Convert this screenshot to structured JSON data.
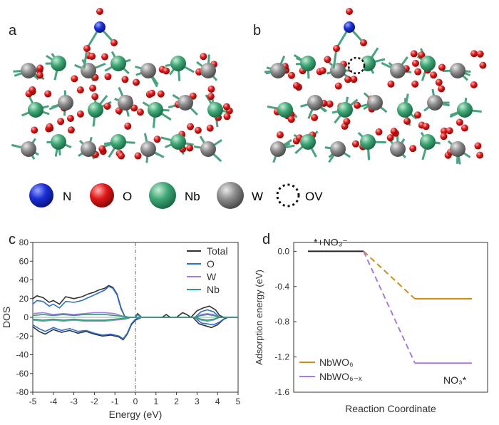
{
  "panel_labels": {
    "a": "a",
    "b": "b",
    "c": "c",
    "d": "d"
  },
  "atom_legend": [
    {
      "label": "N",
      "color": "#1a2fd6",
      "icon": "sphere"
    },
    {
      "label": "O",
      "color": "#e01818",
      "icon": "sphere"
    },
    {
      "label": "Nb",
      "color": "#3fa877",
      "icon": "sphere"
    },
    {
      "label": "W",
      "color": "#8c8c8c",
      "icon": "sphere"
    },
    {
      "label": "OV",
      "color": "#111111",
      "icon": "dashed-circle"
    }
  ],
  "colors": {
    "O": "#e01818",
    "Nb": "#3fa877",
    "W": "#8c8c8c",
    "N": "#1a2fd6",
    "bond": "#4aa37f",
    "total": "#333333",
    "dos_O": "#2b6fd1",
    "dos_W": "#a77be0",
    "dos_Nb": "#26a36b",
    "nbwo6": "#c98f1a",
    "nbwo6x": "#a77be0",
    "ref": "#222222"
  },
  "chart_data": [
    {
      "type": "line",
      "panel": "c",
      "xlabel": "Energy (eV)",
      "ylabel": "DOS",
      "xlim": [
        -5,
        5
      ],
      "ylim": [
        -80,
        80
      ],
      "xticks": [
        -5,
        -4,
        -3,
        -2,
        -1,
        0,
        1,
        2,
        3,
        4,
        5
      ],
      "yticks": [
        80,
        60,
        40,
        20,
        0,
        -20,
        -40,
        -60,
        -80
      ],
      "fermi_level": 0,
      "legend_position": "top-right",
      "series": [
        {
          "name": "Total",
          "up": [
            [
              -5,
              20
            ],
            [
              -4.8,
              23
            ],
            [
              -4.5,
              21
            ],
            [
              -4.2,
              16
            ],
            [
              -4.0,
              18
            ],
            [
              -3.7,
              14
            ],
            [
              -3.4,
              22
            ],
            [
              -3.0,
              20
            ],
            [
              -2.6,
              22
            ],
            [
              -2.3,
              25
            ],
            [
              -2.0,
              27
            ],
            [
              -1.8,
              29
            ],
            [
              -1.5,
              31
            ],
            [
              -1.3,
              34
            ],
            [
              -1.1,
              32
            ],
            [
              -0.9,
              25
            ],
            [
              -0.7,
              10
            ],
            [
              -0.5,
              0
            ],
            [
              0,
              0
            ],
            [
              0.1,
              4
            ],
            [
              0.3,
              0
            ],
            [
              1.3,
              0
            ],
            [
              1.5,
              3
            ],
            [
              1.7,
              0
            ],
            [
              2.0,
              0
            ],
            [
              2.3,
              5
            ],
            [
              2.5,
              3
            ],
            [
              2.7,
              0
            ],
            [
              3.0,
              7
            ],
            [
              3.3,
              10
            ],
            [
              3.6,
              12
            ],
            [
              3.9,
              8
            ],
            [
              4.1,
              2
            ],
            [
              4.3,
              0
            ],
            [
              5,
              0
            ]
          ],
          "down": [
            [
              -5,
              -10
            ],
            [
              -4.7,
              -15
            ],
            [
              -4.4,
              -18
            ],
            [
              -4.0,
              -13
            ],
            [
              -3.6,
              -16
            ],
            [
              -3.2,
              -14
            ],
            [
              -2.8,
              -17
            ],
            [
              -2.4,
              -15
            ],
            [
              -2.0,
              -18
            ],
            [
              -1.6,
              -20
            ],
            [
              -1.2,
              -19
            ],
            [
              -0.8,
              -21
            ],
            [
              -0.6,
              -24
            ],
            [
              -0.4,
              -18
            ],
            [
              -0.2,
              -8
            ],
            [
              0,
              -3
            ],
            [
              0.3,
              0
            ],
            [
              2.8,
              0
            ],
            [
              3.1,
              -7
            ],
            [
              3.4,
              -9
            ],
            [
              3.7,
              -11
            ],
            [
              4.0,
              -8
            ],
            [
              4.3,
              -2
            ],
            [
              4.5,
              0
            ],
            [
              5,
              0
            ]
          ]
        },
        {
          "name": "O",
          "up": [
            [
              -5,
              14
            ],
            [
              -4.8,
              18
            ],
            [
              -4.5,
              17
            ],
            [
              -4.2,
              12
            ],
            [
              -4.0,
              14
            ],
            [
              -3.7,
              10
            ],
            [
              -3.4,
              17
            ],
            [
              -3.0,
              16
            ],
            [
              -2.6,
              18
            ],
            [
              -2.3,
              21
            ],
            [
              -2.0,
              24
            ],
            [
              -1.8,
              26
            ],
            [
              -1.5,
              29
            ],
            [
              -1.3,
              33
            ],
            [
              -1.1,
              31
            ],
            [
              -0.9,
              24
            ],
            [
              -0.7,
              9
            ],
            [
              -0.5,
              0
            ],
            [
              0,
              0
            ],
            [
              0.1,
              3
            ],
            [
              0.3,
              0
            ],
            [
              2.9,
              0
            ],
            [
              3.2,
              6
            ],
            [
              3.5,
              8
            ],
            [
              3.8,
              6
            ],
            [
              4.1,
              0
            ],
            [
              5,
              0
            ]
          ],
          "down": [
            [
              -5,
              -8
            ],
            [
              -4.7,
              -12
            ],
            [
              -4.4,
              -15
            ],
            [
              -4.0,
              -11
            ],
            [
              -3.6,
              -14
            ],
            [
              -3.2,
              -12
            ],
            [
              -2.8,
              -15
            ],
            [
              -2.4,
              -14
            ],
            [
              -2.0,
              -17
            ],
            [
              -1.6,
              -19
            ],
            [
              -1.2,
              -18
            ],
            [
              -0.8,
              -20
            ],
            [
              -0.6,
              -23
            ],
            [
              -0.4,
              -17
            ],
            [
              -0.2,
              -7
            ],
            [
              0,
              -2
            ],
            [
              0.3,
              0
            ],
            [
              2.9,
              0
            ],
            [
              3.2,
              -6
            ],
            [
              3.5,
              -7
            ],
            [
              3.8,
              -8
            ],
            [
              4.1,
              -5
            ],
            [
              4.4,
              0
            ],
            [
              5,
              0
            ]
          ]
        },
        {
          "name": "W",
          "up": [
            [
              -5,
              4
            ],
            [
              -4.5,
              5
            ],
            [
              -4.0,
              3
            ],
            [
              -3.5,
              4
            ],
            [
              -3.0,
              3
            ],
            [
              -2.5,
              4
            ],
            [
              -2.0,
              5
            ],
            [
              -1.5,
              5
            ],
            [
              -1.0,
              4
            ],
            [
              -0.6,
              1
            ],
            [
              -0.4,
              0
            ],
            [
              0,
              0
            ],
            [
              2.9,
              0
            ],
            [
              3.2,
              3
            ],
            [
              3.5,
              4
            ],
            [
              3.8,
              3
            ],
            [
              4.1,
              0
            ],
            [
              5,
              0
            ]
          ],
          "down": [
            [
              -5,
              -3
            ],
            [
              -4.5,
              -4
            ],
            [
              -4.0,
              -3
            ],
            [
              -3.5,
              -4
            ],
            [
              -3.0,
              -3
            ],
            [
              -2.5,
              -4
            ],
            [
              -2.0,
              -4
            ],
            [
              -1.5,
              -4
            ],
            [
              -1.0,
              -3
            ],
            [
              -0.5,
              -2
            ],
            [
              -0.2,
              0
            ],
            [
              2.9,
              0
            ],
            [
              3.2,
              -3
            ],
            [
              3.5,
              -4
            ],
            [
              3.8,
              -3
            ],
            [
              4.1,
              0
            ],
            [
              5,
              0
            ]
          ]
        },
        {
          "name": "Nb",
          "up": [
            [
              -5,
              2
            ],
            [
              -4.5,
              3
            ],
            [
              -4.0,
              2
            ],
            [
              -3.5,
              3
            ],
            [
              -3.0,
              2
            ],
            [
              -2.5,
              3
            ],
            [
              -2.0,
              3
            ],
            [
              -1.5,
              3
            ],
            [
              -1.0,
              2
            ],
            [
              -0.5,
              1
            ],
            [
              -0.3,
              0
            ],
            [
              0,
              0
            ],
            [
              2.9,
              0
            ],
            [
              3.2,
              2
            ],
            [
              3.5,
              3
            ],
            [
              3.8,
              2
            ],
            [
              4.1,
              0
            ],
            [
              5,
              0
            ]
          ],
          "down": [
            [
              -5,
              -2
            ],
            [
              -4.5,
              -3
            ],
            [
              -4.0,
              -2
            ],
            [
              -3.5,
              -3
            ],
            [
              -3.0,
              -2
            ],
            [
              -2.5,
              -3
            ],
            [
              -2.0,
              -3
            ],
            [
              -1.5,
              -3
            ],
            [
              -1.0,
              -2
            ],
            [
              -0.5,
              -1
            ],
            [
              -0.2,
              0
            ],
            [
              2.9,
              0
            ],
            [
              3.2,
              -2
            ],
            [
              3.5,
              -3
            ],
            [
              3.8,
              -2
            ],
            [
              4.1,
              0
            ],
            [
              5,
              0
            ]
          ]
        }
      ]
    },
    {
      "type": "line",
      "panel": "d",
      "xlabel": "Reaction Coordinate",
      "ylabel": "Adsorption energy (eV)",
      "ylim": [
        -1.6,
        0.1
      ],
      "yticks": [
        "0.0",
        "-0.4",
        "-0.8",
        "-1.2",
        "-1.6"
      ],
      "ytick_values": [
        0.0,
        -0.4,
        -0.8,
        -1.2,
        -1.6
      ],
      "states": [
        "*+NO₃⁻",
        "NO₃*"
      ],
      "legend_position": "bottom-left",
      "series": [
        {
          "name": "NbWO₆",
          "values": [
            0.0,
            -0.54
          ]
        },
        {
          "name": "NbWO₆₋ₓ",
          "values": [
            0.0,
            -1.27
          ]
        }
      ]
    }
  ]
}
